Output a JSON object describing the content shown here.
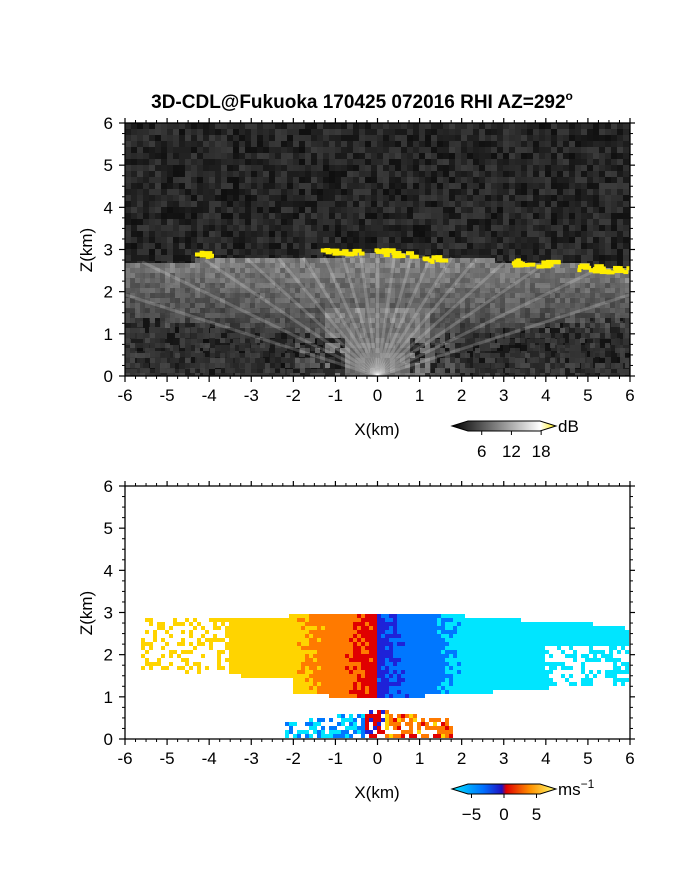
{
  "title": "3D-CDL@Fukuoka 170425 072016 RHI AZ=292",
  "title_superscript": "o",
  "colors": {
    "highlight": "#ffee00",
    "background_dark": "#1a1a1a",
    "doppler_scale": [
      "#00e5ff",
      "#0077ff",
      "#1e22d8",
      "#e00000",
      "#ff7a00",
      "#ffd400",
      "#ffff66"
    ]
  },
  "chart_data": [
    {
      "type": "heatmap",
      "name": "backscatter-panel",
      "xlabel": "X(km)",
      "ylabel": "Z(km)",
      "xlim": [
        -6,
        6
      ],
      "ylim": [
        0,
        6
      ],
      "xticks": [
        "-6",
        "-5",
        "-4",
        "-3",
        "-2",
        "-1",
        "0",
        "1",
        "2",
        "3",
        "4",
        "5",
        "6"
      ],
      "yticks": [
        "0",
        "1",
        "2",
        "3",
        "4",
        "5",
        "6"
      ],
      "colorbar": {
        "unit": "dB",
        "ticks": [
          "6",
          "12",
          "18"
        ],
        "colormap": "gray",
        "range": [
          0,
          21
        ]
      },
      "cloud_top_km": [
        [
          -6.0,
          2.7
        ],
        [
          -5.0,
          2.72
        ],
        [
          -4.0,
          2.75
        ],
        [
          -3.0,
          2.78
        ],
        [
          -2.0,
          2.8
        ],
        [
          -1.0,
          2.85
        ],
        [
          0.0,
          2.88
        ],
        [
          1.0,
          2.85
        ],
        [
          2.0,
          2.8
        ],
        [
          3.0,
          2.72
        ],
        [
          4.0,
          2.68
        ],
        [
          5.0,
          2.62
        ],
        [
          6.0,
          2.5
        ]
      ],
      "highlight_patches_km": [
        [
          -4.2,
          2.88
        ],
        [
          -1.1,
          2.95
        ],
        [
          -0.6,
          2.92
        ],
        [
          0.2,
          2.95
        ],
        [
          0.6,
          2.9
        ],
        [
          1.35,
          2.78
        ],
        [
          3.4,
          2.7
        ],
        [
          4.0,
          2.68
        ],
        [
          5.0,
          2.58
        ],
        [
          5.4,
          2.55
        ],
        [
          5.8,
          2.52
        ]
      ]
    },
    {
      "type": "heatmap",
      "name": "doppler-velocity-panel",
      "xlabel": "X(km)",
      "ylabel": "Z(km)",
      "xlim": [
        -6,
        6
      ],
      "ylim": [
        0,
        6
      ],
      "xticks": [
        "-6",
        "-5",
        "-4",
        "-3",
        "-2",
        "-1",
        "0",
        "1",
        "2",
        "3",
        "4",
        "5",
        "6"
      ],
      "yticks": [
        "0",
        "1",
        "2",
        "3",
        "4",
        "5",
        "6"
      ],
      "colorbar": {
        "unit": "ms",
        "unit_superscript": "−1",
        "ticks": [
          "−5",
          "0",
          "5"
        ],
        "range": [
          -8,
          8
        ]
      },
      "velocity_field": {
        "x_range_km": [
          -5.6,
          6.0
        ],
        "z_range_km": [
          0.9,
          3.1
        ],
        "left_velocity_ms": 7,
        "right_velocity_ms": -7
      },
      "surface_echo": {
        "x_range_km": [
          -2.2,
          1.8
        ],
        "z_range_km": [
          0.0,
          0.7
        ]
      }
    }
  ]
}
